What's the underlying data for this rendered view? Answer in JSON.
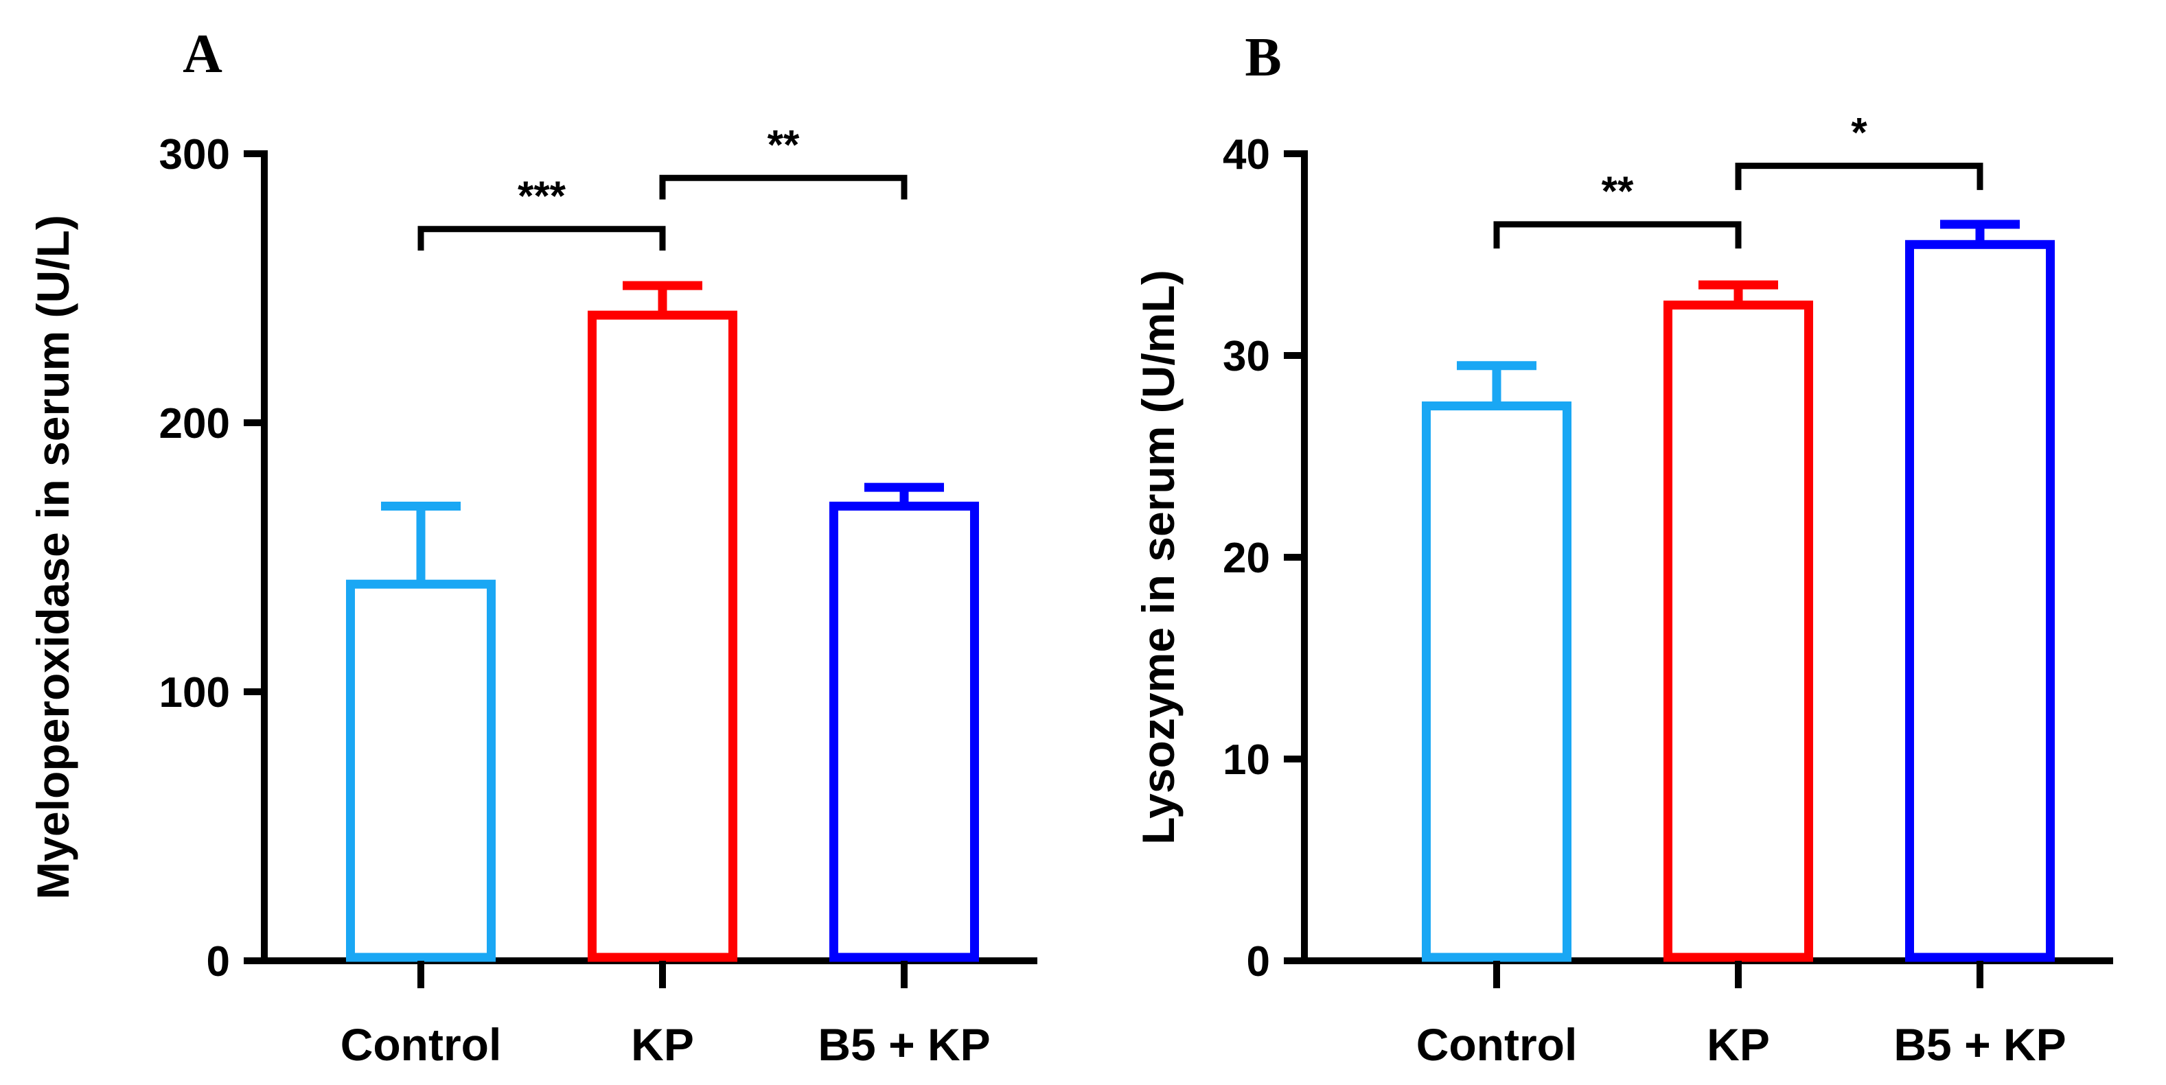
{
  "chart_data": [
    {
      "type": "bar",
      "panel_label": "A",
      "ylabel": "Myeloperoxidase in serum (U/L)",
      "xlabel": "",
      "ylim": [
        0,
        300
      ],
      "yticks": [
        0,
        100,
        200,
        300
      ],
      "categories": [
        "Control",
        "KP",
        "B5 + KP"
      ],
      "values": [
        140,
        240,
        169
      ],
      "errors": [
        29,
        11,
        7
      ],
      "colors": [
        "#1aa7f4",
        "#ff0000",
        "#0000ff"
      ],
      "bar_fill": "none",
      "significance": [
        {
          "from": 0,
          "to": 1,
          "label": "***",
          "y": 272,
          "drop_left": 8,
          "drop_right": 8
        },
        {
          "from": 1,
          "to": 2,
          "label": "**",
          "y": 291,
          "drop_left": 8,
          "drop_right": 8
        }
      ]
    },
    {
      "type": "bar",
      "panel_label": "B",
      "ylabel": "Lysozyme in serum (U/mL)",
      "xlabel": "",
      "ylim": [
        0,
        40
      ],
      "yticks": [
        0,
        10,
        20,
        30,
        40
      ],
      "categories": [
        "Control",
        "KP",
        "B5 + KP"
      ],
      "values": [
        27.5,
        32.5,
        35.5
      ],
      "errors": [
        2,
        1,
        1
      ],
      "colors": [
        "#1aa7f4",
        "#ff0000",
        "#0000ff"
      ],
      "bar_fill": "none",
      "significance": [
        {
          "from": 0,
          "to": 1,
          "label": "**",
          "y": 36.5,
          "drop_left": 1.2,
          "drop_right": 1.2
        },
        {
          "from": 1,
          "to": 2,
          "label": "*",
          "y": 39.4,
          "drop_left": 1.2,
          "drop_right": 1.2
        }
      ]
    }
  ]
}
